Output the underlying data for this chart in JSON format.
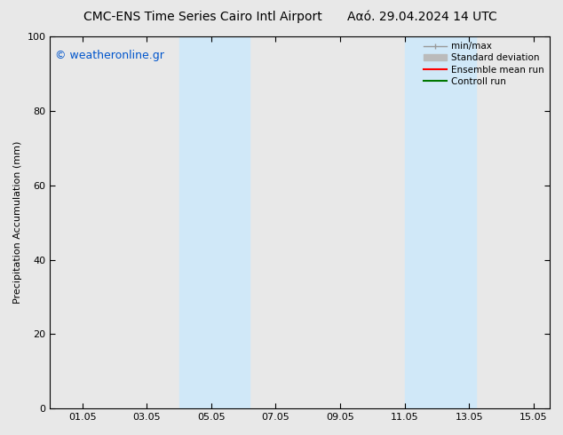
{
  "title_left": "CMC-ENS Time Series Cairo Intl Airport",
  "title_right": "Ααό. 29.04.2024 14 UTC",
  "ylabel": "Precipitation Accumulation (mm)",
  "ylim": [
    0,
    100
  ],
  "yticks": [
    0,
    20,
    40,
    60,
    80,
    100
  ],
  "watermark": "© weatheronline.gr",
  "watermark_color": "#0055cc",
  "bg_color": "#e8e8e8",
  "plot_bg_color": "#e8e8e8",
  "shaded_regions": [
    {
      "xmin": 4.0,
      "xmax": 6.2,
      "color": "#d0e8f8"
    },
    {
      "xmin": 11.0,
      "xmax": 13.2,
      "color": "#d0e8f8"
    }
  ],
  "xtick_labels": [
    "01.05",
    "03.05",
    "05.05",
    "07.05",
    "09.05",
    "11.05",
    "13.05",
    "15.05"
  ],
  "xtick_positions": [
    1,
    3,
    5,
    7,
    9,
    11,
    13,
    15
  ],
  "xlim": [
    0.0,
    15.5
  ],
  "legend_items": [
    {
      "label": "min/max",
      "color": "#999999",
      "lw": 1.0,
      "ls": "-"
    },
    {
      "label": "Standard deviation",
      "color": "#bbbbbb",
      "lw": 5,
      "ls": "-"
    },
    {
      "label": "Ensemble mean run",
      "color": "#ff0000",
      "lw": 1.5,
      "ls": "-"
    },
    {
      "label": "Controll run",
      "color": "#007700",
      "lw": 1.5,
      "ls": "-"
    }
  ],
  "spine_color": "#000000",
  "tick_color": "#000000",
  "title_fontsize": 10,
  "tick_fontsize": 8,
  "ylabel_fontsize": 8,
  "legend_fontsize": 7.5,
  "watermark_fontsize": 9
}
